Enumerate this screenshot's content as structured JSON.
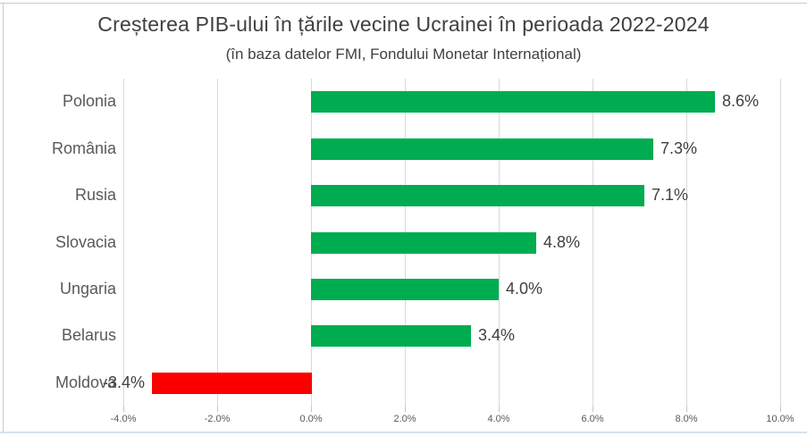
{
  "chart_data": {
    "type": "bar",
    "orientation": "horizontal",
    "title": "Creșterea PIB-ului în țările vecine Ucrainei în perioada 2022-2024",
    "subtitle": "(în baza datelor FMI, Fondului Monetar Internațional)",
    "categories": [
      "Polonia",
      "România",
      "Rusia",
      "Slovacia",
      "Ungaria",
      "Belarus",
      "Moldova"
    ],
    "values": [
      8.6,
      7.3,
      7.1,
      4.8,
      4.0,
      3.4,
      -3.4
    ],
    "value_labels": [
      "8.6%",
      "7.3%",
      "7.1%",
      "4.8%",
      "4.0%",
      "3.4%",
      "-3.4%"
    ],
    "x_tick_values": [
      -4,
      -2,
      0,
      2,
      4,
      6,
      8,
      10
    ],
    "x_tick_labels": [
      "-4.0%",
      "-2.0%",
      "0.0%",
      "2.0%",
      "4.0%",
      "6.0%",
      "8.0%",
      "10.0%"
    ],
    "xlim": [
      -4,
      10
    ],
    "grid": "vertical",
    "legend": "none",
    "colors": {
      "positive_bar": "#00AC50",
      "negative_bar": "#FC0000",
      "title_text": "#3F3F3F",
      "label_text": "#595959",
      "gridline": "#D9D9D9"
    }
  }
}
